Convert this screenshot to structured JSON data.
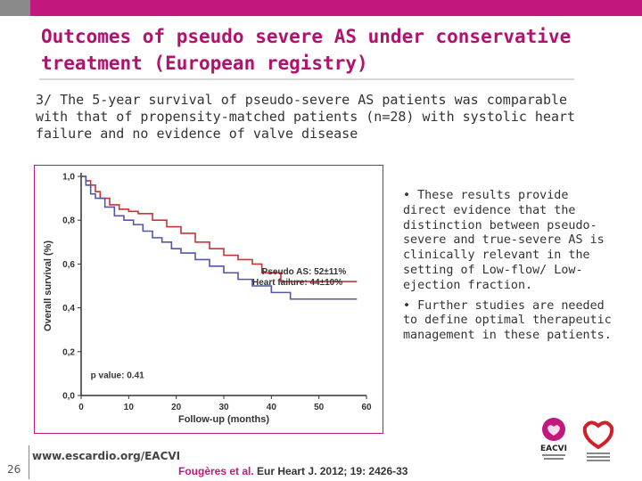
{
  "title": "Outcomes of pseudo severe AS under conservative treatment (European registry)",
  "intro": "3/ The 5-year survival of pseudo-severe AS patients was comparable with that of propensity-matched patients (n=28) with systolic heart failure and no evidence of valve disease",
  "bullets": [
    "• These results provide direct evidence that the distinction between pseudo-severe and true-severe AS is clinically relevant in the setting of Low-flow/ Low-ejection fraction.",
    "• Further studies are needed to define optimal therapeutic management in these patients."
  ],
  "footer": {
    "page_number": "26",
    "url": "www.escardio.org/EACVI",
    "citation_author": "Fougères et al.",
    "citation_ref": " Eur Heart J. 2012; 19: 2426-33"
  },
  "logos": {
    "eacvi": "EACVI"
  },
  "colors": {
    "accent": "#c2187e",
    "pseudo_as": "#cc3333",
    "heart_failure": "#5555aa"
  },
  "chart_data": {
    "type": "line",
    "step": true,
    "xlabel": "Follow-up (months)",
    "ylabel": "Overall survival (%)",
    "xlim": [
      0,
      60
    ],
    "ylim": [
      0,
      1.0
    ],
    "x_ticks": [
      "0",
      "10",
      "20",
      "30",
      "40",
      "50",
      "60"
    ],
    "y_ticks": [
      "0,0",
      "0,2",
      "0,4",
      "0,6",
      "0,8",
      "1,0"
    ],
    "series": [
      {
        "name": "Pseudo AS: 52±11%",
        "color": "#cc3333",
        "points": [
          [
            0,
            1.0
          ],
          [
            1,
            0.98
          ],
          [
            2,
            0.96
          ],
          [
            3,
            0.93
          ],
          [
            4,
            0.9
          ],
          [
            6,
            0.87
          ],
          [
            8,
            0.85
          ],
          [
            10,
            0.84
          ],
          [
            12,
            0.83
          ],
          [
            15,
            0.8
          ],
          [
            18,
            0.77
          ],
          [
            21,
            0.74
          ],
          [
            24,
            0.7
          ],
          [
            27,
            0.67
          ],
          [
            30,
            0.64
          ],
          [
            33,
            0.62
          ],
          [
            36,
            0.6
          ],
          [
            38,
            0.56
          ],
          [
            42,
            0.52
          ],
          [
            58,
            0.52
          ]
        ]
      },
      {
        "name": "Heart failure: 44±10%",
        "color": "#5555aa",
        "points": [
          [
            0,
            1.0
          ],
          [
            1,
            0.96
          ],
          [
            2,
            0.92
          ],
          [
            3,
            0.9
          ],
          [
            5,
            0.86
          ],
          [
            7,
            0.82
          ],
          [
            9,
            0.8
          ],
          [
            11,
            0.78
          ],
          [
            13,
            0.75
          ],
          [
            15,
            0.72
          ],
          [
            17,
            0.7
          ],
          [
            19,
            0.67
          ],
          [
            21,
            0.65
          ],
          [
            24,
            0.62
          ],
          [
            27,
            0.59
          ],
          [
            30,
            0.56
          ],
          [
            33,
            0.53
          ],
          [
            36,
            0.5
          ],
          [
            40,
            0.47
          ],
          [
            44,
            0.44
          ],
          [
            58,
            0.44
          ]
        ]
      }
    ],
    "annotation": "p value: 0.41"
  }
}
